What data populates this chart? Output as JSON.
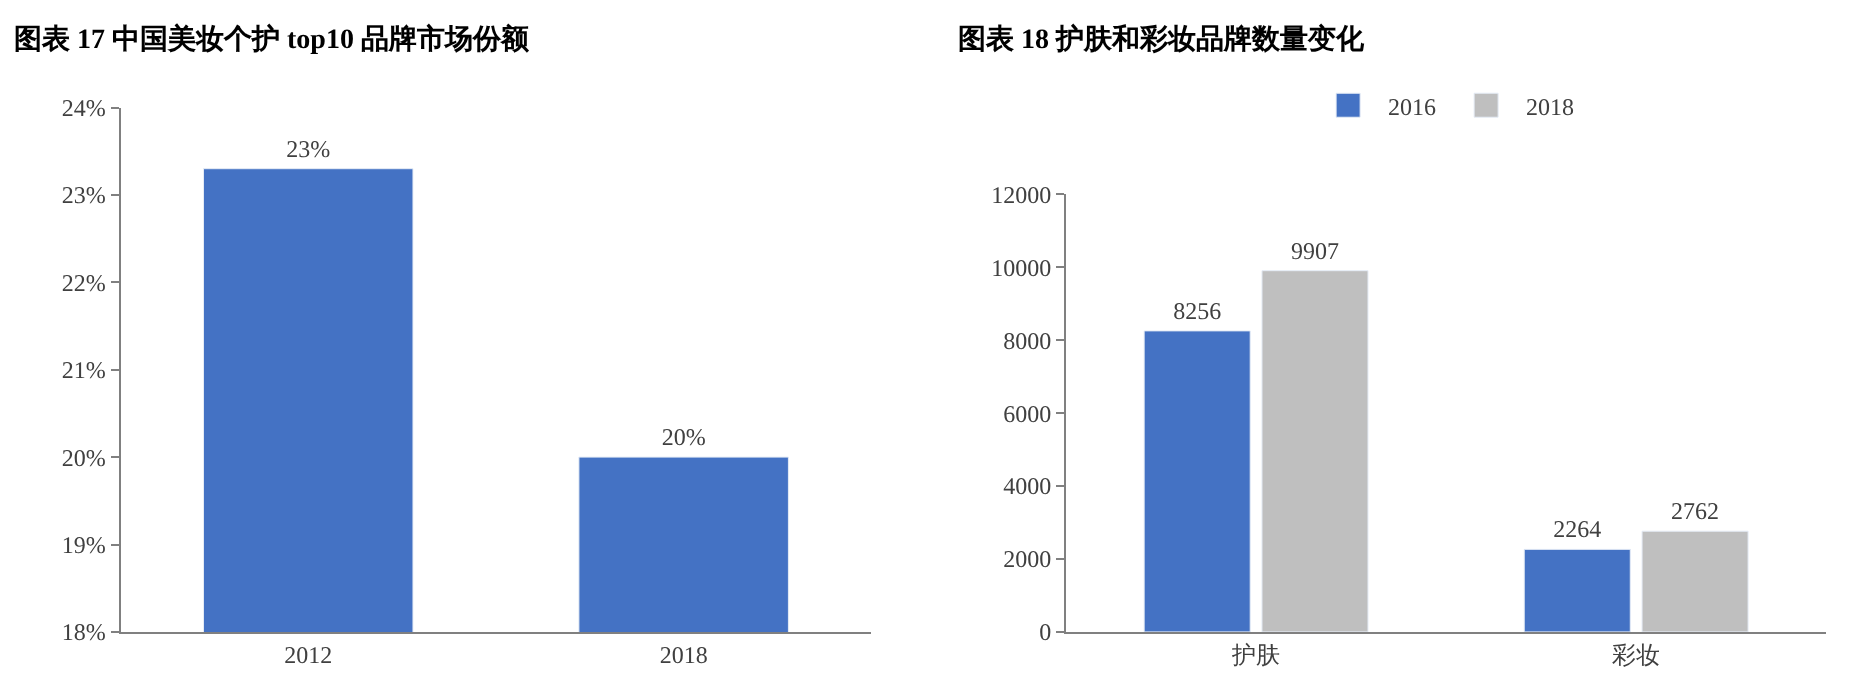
{
  "chart_data": [
    {
      "type": "bar",
      "title": "图表 17 中国美妆个护 top10 品牌市场份额",
      "categories": [
        "2012",
        "2018"
      ],
      "values": [
        23.3,
        20.0
      ],
      "color": "#4472c4",
      "value_labels": [
        "23%",
        "20%"
      ],
      "ylim": [
        18,
        24
      ],
      "yticks": [
        {
          "value": 18,
          "label": "18%"
        },
        {
          "value": 19,
          "label": "19%"
        },
        {
          "value": 20,
          "label": "20%"
        },
        {
          "value": 21,
          "label": "21%"
        },
        {
          "value": 22,
          "label": "22%"
        },
        {
          "value": 23,
          "label": "23%"
        },
        {
          "value": 24,
          "label": "24%"
        }
      ]
    },
    {
      "type": "bar",
      "title": "图表 18 护肤和彩妆品牌数量变化",
      "categories": [
        "护肤",
        "彩妆"
      ],
      "series": [
        {
          "name": "2016",
          "color": "#4472c4",
          "values": [
            8256,
            2264
          ]
        },
        {
          "name": "2018",
          "color": "#bfbfbf",
          "values": [
            9907,
            2762
          ]
        }
      ],
      "data_labels": true,
      "ylim": [
        0,
        12000
      ],
      "yticks": [
        0,
        2000,
        4000,
        6000,
        8000,
        10000,
        12000
      ],
      "legend": "top"
    }
  ]
}
